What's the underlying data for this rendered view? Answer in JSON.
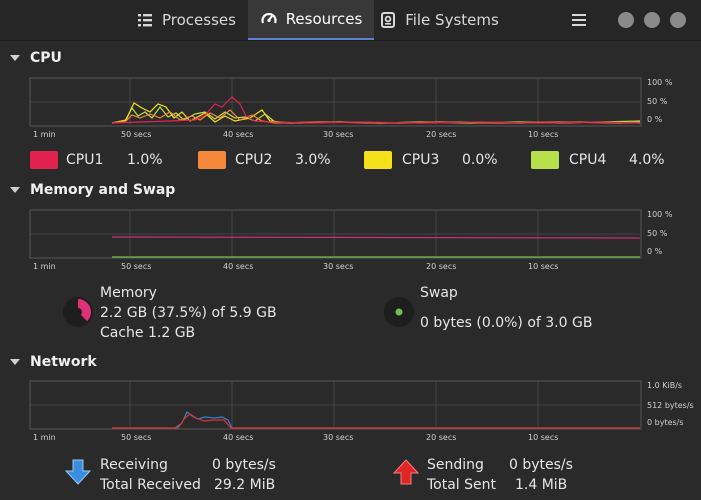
{
  "tabs": [
    {
      "label": "Processes",
      "icon": "list-icon"
    },
    {
      "label": "Resources",
      "icon": "gauge-icon",
      "active": true
    },
    {
      "label": "File Systems",
      "icon": "disk-icon"
    }
  ],
  "window_controls": [
    "minimize-icon",
    "maximize-icon",
    "close-icon"
  ],
  "time_ticks": [
    "1 min",
    "50 secs",
    "40 secs",
    "30 secs",
    "20 secs",
    "10 secs"
  ],
  "cpu": {
    "title": "CPU",
    "y_ticks": [
      "100 %",
      "50 %",
      "0 %"
    ],
    "legend": [
      {
        "name": "CPU1",
        "value": "1.0%",
        "color": "#e0234f"
      },
      {
        "name": "CPU2",
        "value": "3.0%",
        "color": "#f5883a"
      },
      {
        "name": "CPU3",
        "value": "0.0%",
        "color": "#f5e11a"
      },
      {
        "name": "CPU4",
        "value": "4.0%",
        "color": "#b8e04a"
      }
    ]
  },
  "memory": {
    "title": "Memory and Swap",
    "y_ticks": [
      "100 %",
      "50 %",
      "0 %"
    ],
    "memory_label": "Memory",
    "memory_usage": "2.2 GB (37.5%) of 5.9 GB",
    "cache": "Cache 1.2 GB",
    "memory_fraction": 0.375,
    "memory_color": "#e0307a",
    "swap_label": "Swap",
    "swap_usage": "0 bytes (0.0%) of 3.0 GB",
    "swap_fraction": 0.0,
    "swap_color": "#6cc24a"
  },
  "network": {
    "title": "Network",
    "y_ticks": [
      "1.0 KiB/s",
      "512 bytes/s",
      "0 bytes/s"
    ],
    "receiving_label": "Receiving",
    "receiving_value": "0 bytes/s",
    "total_received_label": "Total Received",
    "total_received_value": "29.2 MiB",
    "sending_label": "Sending",
    "sending_value": "0 bytes/s",
    "total_sent_label": "Total Sent",
    "total_sent_value": "1.4 MiB",
    "receive_color": "#3a7fd0",
    "send_color": "#e03030"
  }
}
